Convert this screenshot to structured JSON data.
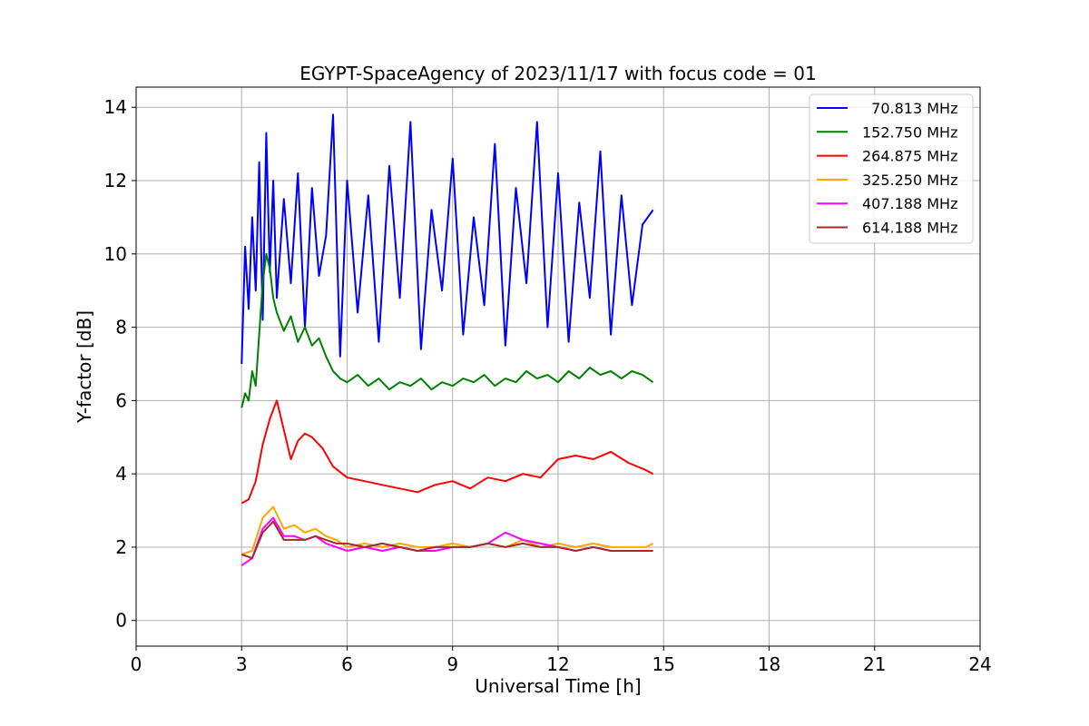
{
  "chart_data": {
    "type": "line",
    "title": "EGYPT-SpaceAgency of 2023/11/17 with focus code = 01",
    "xlabel": "Universal Time [h]",
    "ylabel": "Y-factor [dB]",
    "xlim": [
      0,
      24
    ],
    "ylim": [
      -0.7,
      14.55
    ],
    "xticks": [
      0,
      3,
      6,
      9,
      12,
      15,
      18,
      21,
      24
    ],
    "xtick_labels": [
      "0",
      "3",
      "6",
      "9",
      "12",
      "15",
      "18",
      "21",
      "24"
    ],
    "yticks": [
      0,
      2,
      4,
      6,
      8,
      10,
      12,
      14
    ],
    "ytick_labels": [
      "0",
      "2",
      "4",
      "6",
      "8",
      "10",
      "12",
      "14"
    ],
    "grid": true,
    "legend_position": "top-right",
    "series": [
      {
        "name": "  70.813 MHz",
        "color": "#0000ff",
        "x": [
          3.0,
          3.1,
          3.2,
          3.3,
          3.4,
          3.5,
          3.6,
          3.7,
          3.8,
          3.9,
          4.0,
          4.2,
          4.4,
          4.6,
          4.8,
          5.0,
          5.2,
          5.4,
          5.6,
          5.8,
          6.0,
          6.3,
          6.6,
          6.9,
          7.2,
          7.5,
          7.8,
          8.1,
          8.4,
          8.7,
          9.0,
          9.3,
          9.6,
          9.9,
          10.2,
          10.5,
          10.8,
          11.1,
          11.4,
          11.7,
          12.0,
          12.3,
          12.6,
          12.9,
          13.2,
          13.5,
          13.8,
          14.1,
          14.4,
          14.7
        ],
        "y": [
          7.0,
          10.2,
          8.5,
          11.0,
          9.0,
          12.5,
          8.2,
          13.3,
          9.5,
          12.0,
          8.8,
          11.5,
          9.2,
          12.2,
          8.0,
          11.8,
          9.4,
          10.5,
          13.8,
          7.2,
          12.0,
          8.4,
          11.6,
          7.6,
          12.4,
          8.8,
          13.6,
          7.4,
          11.2,
          9.0,
          12.6,
          7.8,
          11.0,
          8.6,
          13.0,
          7.5,
          11.8,
          9.2,
          13.6,
          8.0,
          12.2,
          7.6,
          11.4,
          8.8,
          12.8,
          7.8,
          11.6,
          8.6,
          10.8,
          11.2
        ]
      },
      {
        "name": "152.750 MHz",
        "color": "#008000",
        "x": [
          3.0,
          3.1,
          3.2,
          3.3,
          3.4,
          3.5,
          3.6,
          3.7,
          3.8,
          3.9,
          4.0,
          4.2,
          4.4,
          4.6,
          4.8,
          5.0,
          5.2,
          5.4,
          5.6,
          5.8,
          6.0,
          6.3,
          6.6,
          6.9,
          7.2,
          7.5,
          7.8,
          8.1,
          8.4,
          8.7,
          9.0,
          9.3,
          9.6,
          9.9,
          10.2,
          10.5,
          10.8,
          11.1,
          11.4,
          11.7,
          12.0,
          12.3,
          12.6,
          12.9,
          13.2,
          13.5,
          13.8,
          14.1,
          14.4,
          14.7
        ],
        "y": [
          5.8,
          6.2,
          6.0,
          6.8,
          6.4,
          7.8,
          9.2,
          10.0,
          9.6,
          8.8,
          8.4,
          7.9,
          8.3,
          7.6,
          8.0,
          7.5,
          7.7,
          7.2,
          6.8,
          6.6,
          6.5,
          6.7,
          6.4,
          6.6,
          6.3,
          6.5,
          6.4,
          6.6,
          6.3,
          6.5,
          6.4,
          6.6,
          6.5,
          6.7,
          6.4,
          6.6,
          6.5,
          6.8,
          6.6,
          6.7,
          6.5,
          6.8,
          6.6,
          6.9,
          6.7,
          6.8,
          6.6,
          6.8,
          6.7,
          6.5
        ]
      },
      {
        "name": "264.875 MHz",
        "color": "#ff0000",
        "x": [
          3.0,
          3.2,
          3.4,
          3.6,
          3.8,
          4.0,
          4.2,
          4.4,
          4.6,
          4.8,
          5.0,
          5.3,
          5.6,
          6.0,
          6.5,
          7.0,
          7.5,
          8.0,
          8.5,
          9.0,
          9.5,
          10.0,
          10.5,
          11.0,
          11.5,
          12.0,
          12.5,
          13.0,
          13.5,
          14.0,
          14.5,
          14.7
        ],
        "y": [
          3.2,
          3.3,
          3.8,
          4.8,
          5.5,
          6.0,
          5.2,
          4.4,
          4.9,
          5.1,
          5.0,
          4.7,
          4.2,
          3.9,
          3.8,
          3.7,
          3.6,
          3.5,
          3.7,
          3.8,
          3.6,
          3.9,
          3.8,
          4.0,
          3.9,
          4.4,
          4.5,
          4.4,
          4.6,
          4.3,
          4.1,
          4.0
        ]
      },
      {
        "name": "325.250 MHz",
        "color": "#ffa500",
        "x": [
          3.0,
          3.3,
          3.6,
          3.9,
          4.2,
          4.5,
          4.8,
          5.1,
          5.4,
          5.7,
          6.0,
          6.5,
          7.0,
          7.5,
          8.0,
          8.5,
          9.0,
          9.5,
          10.0,
          10.5,
          11.0,
          11.5,
          12.0,
          12.5,
          13.0,
          13.5,
          14.0,
          14.5,
          14.7
        ],
        "y": [
          1.8,
          1.9,
          2.8,
          3.1,
          2.5,
          2.6,
          2.4,
          2.5,
          2.3,
          2.2,
          2.0,
          2.1,
          2.0,
          2.1,
          2.0,
          2.0,
          2.1,
          2.0,
          2.1,
          2.0,
          2.2,
          2.0,
          2.1,
          2.0,
          2.1,
          2.0,
          2.0,
          2.0,
          2.1
        ]
      },
      {
        "name": "407.188 MHz",
        "color": "#ff00ff",
        "x": [
          3.0,
          3.3,
          3.6,
          3.9,
          4.2,
          4.5,
          4.8,
          5.1,
          5.4,
          5.7,
          6.0,
          6.5,
          7.0,
          7.5,
          8.0,
          8.5,
          9.0,
          9.5,
          10.0,
          10.5,
          11.0,
          11.5,
          12.0,
          12.5,
          13.0,
          13.5,
          14.0,
          14.5,
          14.7
        ],
        "y": [
          1.5,
          1.7,
          2.5,
          2.8,
          2.3,
          2.3,
          2.2,
          2.3,
          2.1,
          2.0,
          1.9,
          2.0,
          1.9,
          2.0,
          1.9,
          1.9,
          2.0,
          2.0,
          2.1,
          2.4,
          2.2,
          2.1,
          2.0,
          1.9,
          2.0,
          1.9,
          1.9,
          1.9,
          1.9
        ]
      },
      {
        "name": "614.188 MHz",
        "color": "#a52a2a",
        "x": [
          3.0,
          3.3,
          3.6,
          3.9,
          4.2,
          4.5,
          4.8,
          5.1,
          5.4,
          5.7,
          6.0,
          6.5,
          7.0,
          7.5,
          8.0,
          8.5,
          9.0,
          9.5,
          10.0,
          10.5,
          11.0,
          11.5,
          12.0,
          12.5,
          13.0,
          13.5,
          14.0,
          14.5,
          14.7
        ],
        "y": [
          1.8,
          1.7,
          2.4,
          2.7,
          2.2,
          2.2,
          2.2,
          2.3,
          2.2,
          2.1,
          2.1,
          2.0,
          2.1,
          2.0,
          1.9,
          2.0,
          2.0,
          2.0,
          2.1,
          2.0,
          2.1,
          2.0,
          2.0,
          1.9,
          2.0,
          1.9,
          1.9,
          1.9,
          1.9
        ]
      }
    ]
  }
}
